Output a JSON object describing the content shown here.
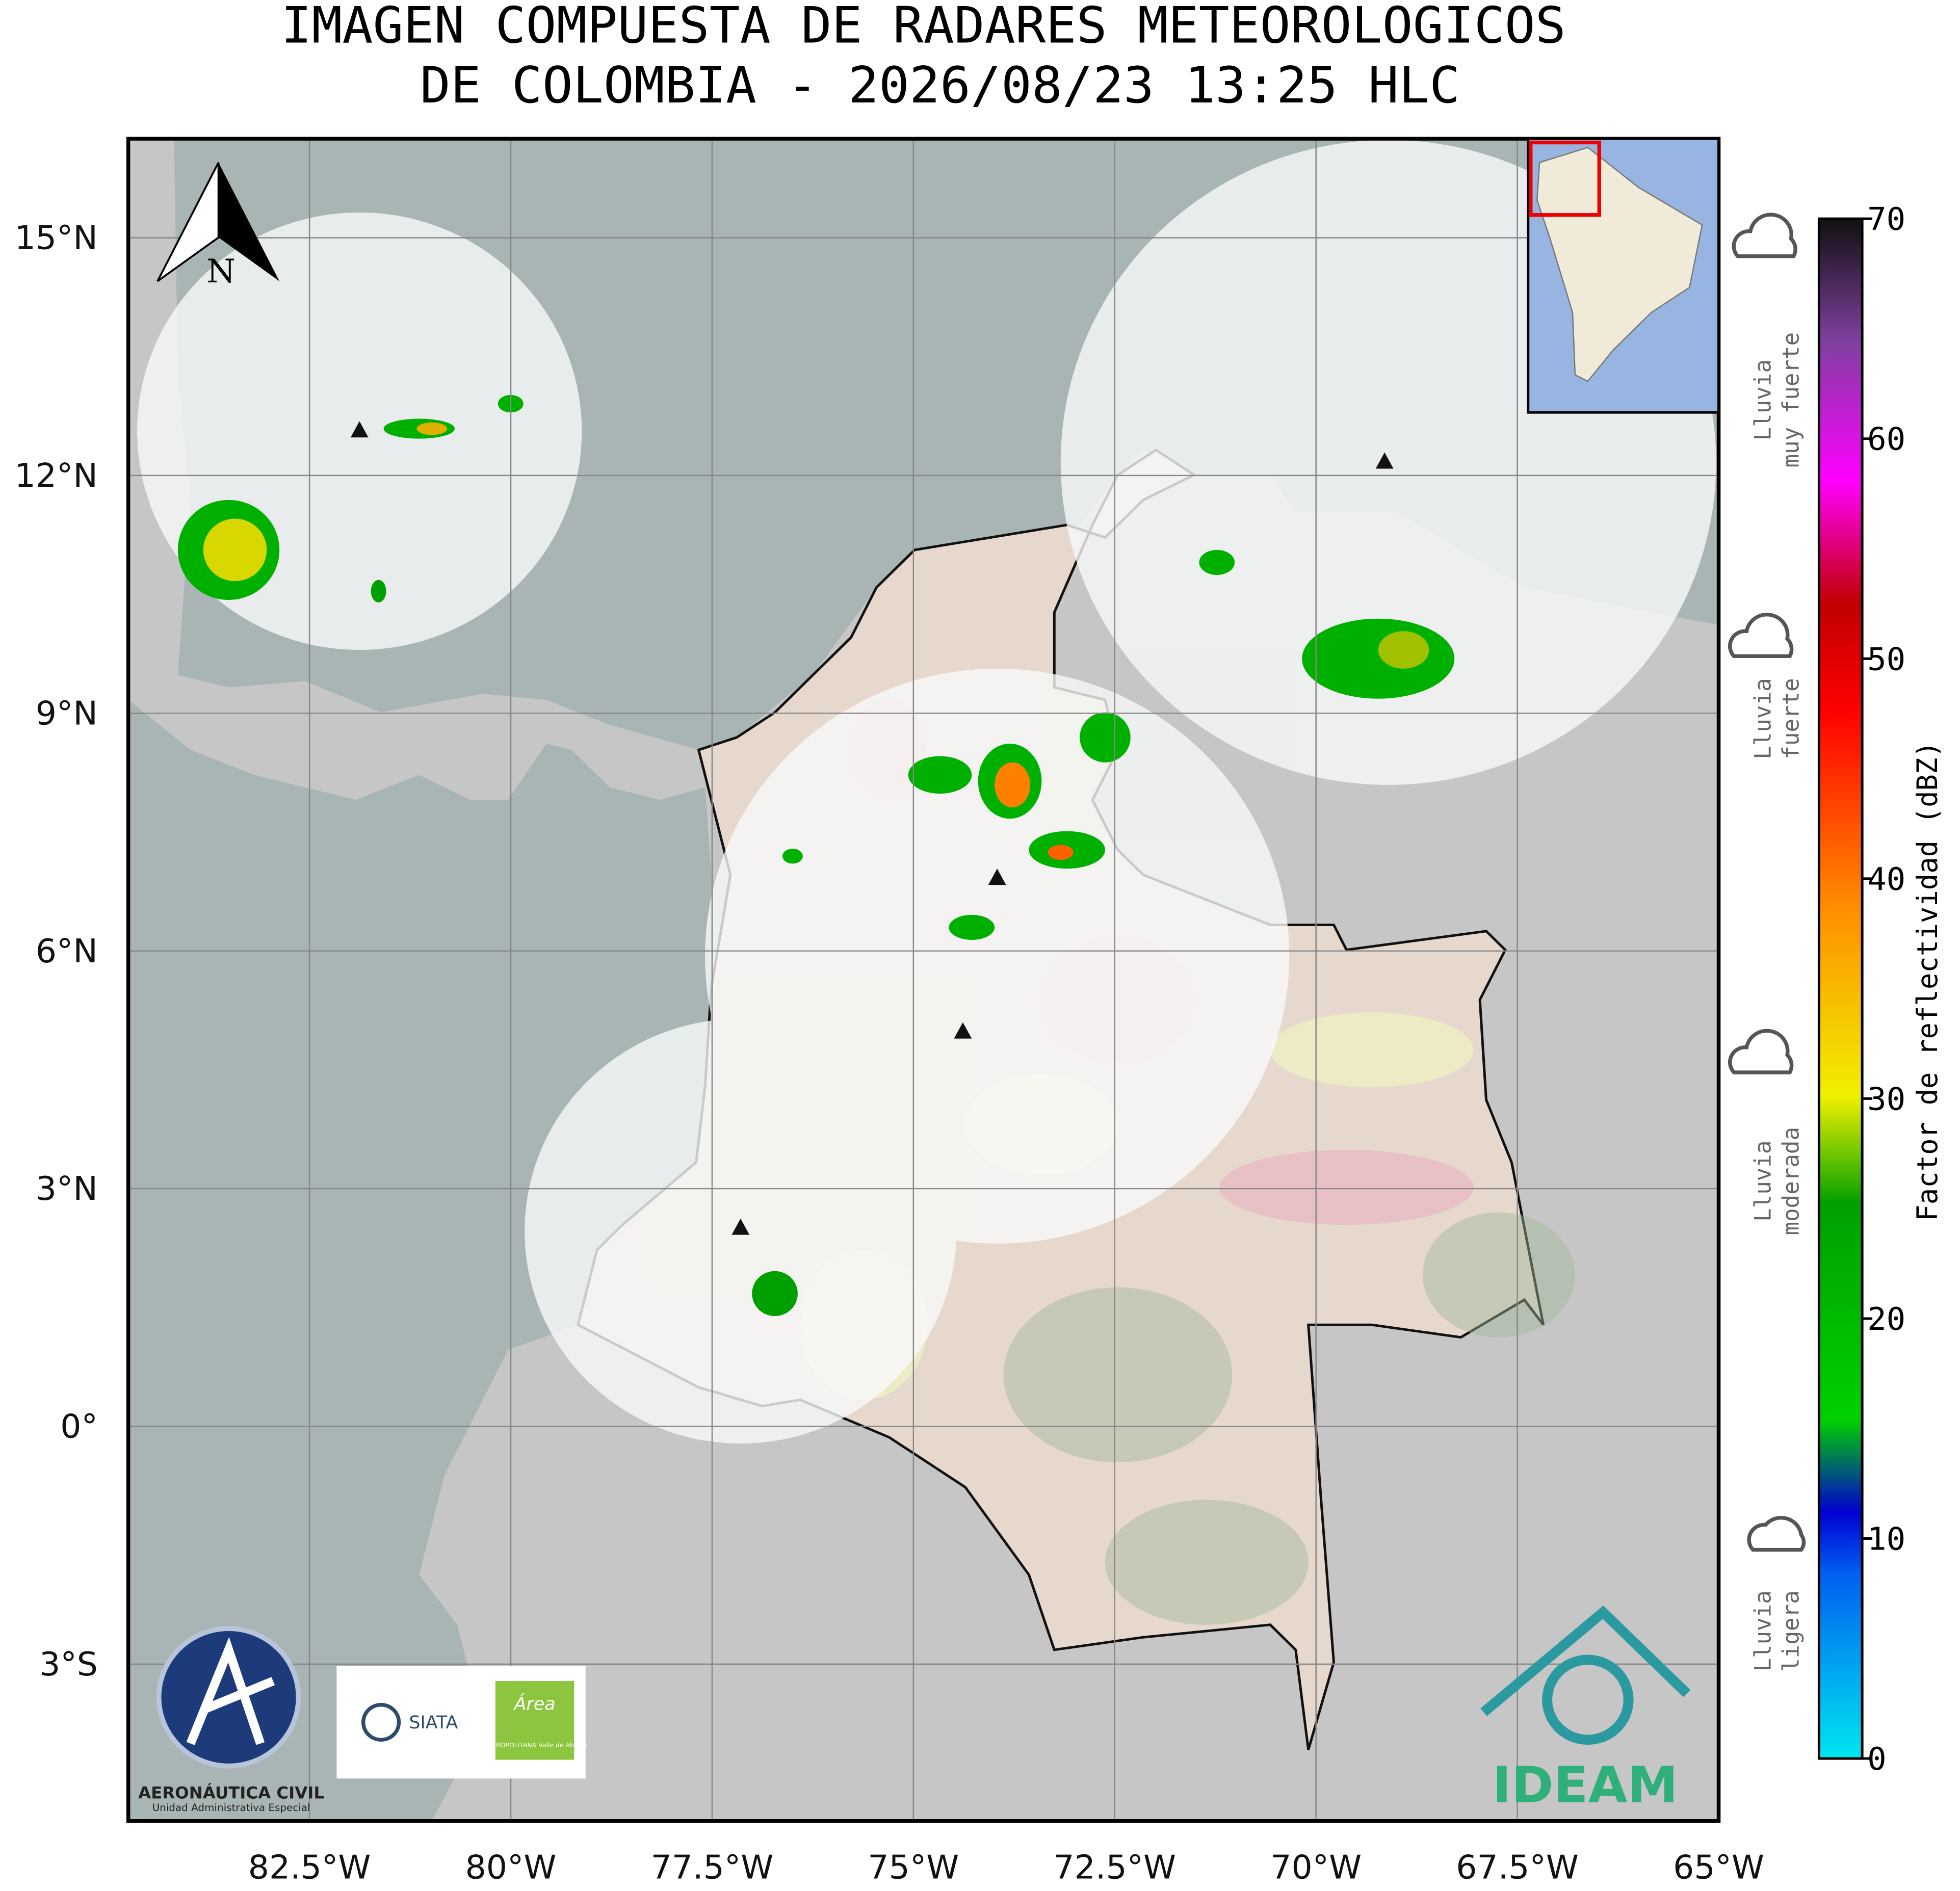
{
  "title": [
    "IMAGEN COMPUESTA DE RADARES METEOROLOGICOS",
    "DE COLOMBIA - 2026/08/23 13:25 HLC"
  ],
  "map": {
    "lon_range": [
      -84.75,
      -65
    ],
    "lat_range": [
      -4.98,
      16.25
    ],
    "lon_ticks": [
      {
        "value": -82.5,
        "label": "82.5°W"
      },
      {
        "value": -80,
        "label": "80°W"
      },
      {
        "value": -77.5,
        "label": "77.5°W"
      },
      {
        "value": -75,
        "label": "75°W"
      },
      {
        "value": -72.5,
        "label": "72.5°W"
      },
      {
        "value": -70,
        "label": "70°W"
      },
      {
        "value": -67.5,
        "label": "67.5°W"
      },
      {
        "value": -65,
        "label": "65°W"
      }
    ],
    "lat_ticks": [
      {
        "value": 15,
        "label": "15°N"
      },
      {
        "value": 12,
        "label": "12°N"
      },
      {
        "value": 9,
        "label": "9°N"
      },
      {
        "value": 6,
        "label": "6°N"
      },
      {
        "value": 3,
        "label": "3°N"
      },
      {
        "value": 0,
        "label": "0°"
      },
      {
        "value": -3,
        "label": "3°S"
      }
    ],
    "north_label": "N"
  },
  "colorbar": {
    "label": "Factor de reflectividad (dBZ)",
    "range": [
      0,
      70
    ],
    "ticks": [
      0,
      10,
      20,
      30,
      40,
      50,
      60,
      70
    ],
    "categories": [
      [
        "Lluvia",
        "ligera"
      ],
      [
        "Lluvia",
        "moderada"
      ],
      [
        "Lluvia",
        "fuerte"
      ],
      [
        "Lluvia",
        "muy fuerte"
      ]
    ]
  },
  "logos": {
    "aerocivil": "AERONÁUTICA CIVIL",
    "aerocivil_sub": "Unidad Administrativa Especial",
    "siata": "SIATA",
    "area": "Área",
    "area_sub": "METROPOLITANA Valle de Aburrá",
    "ideam": "IDEAM"
  }
}
